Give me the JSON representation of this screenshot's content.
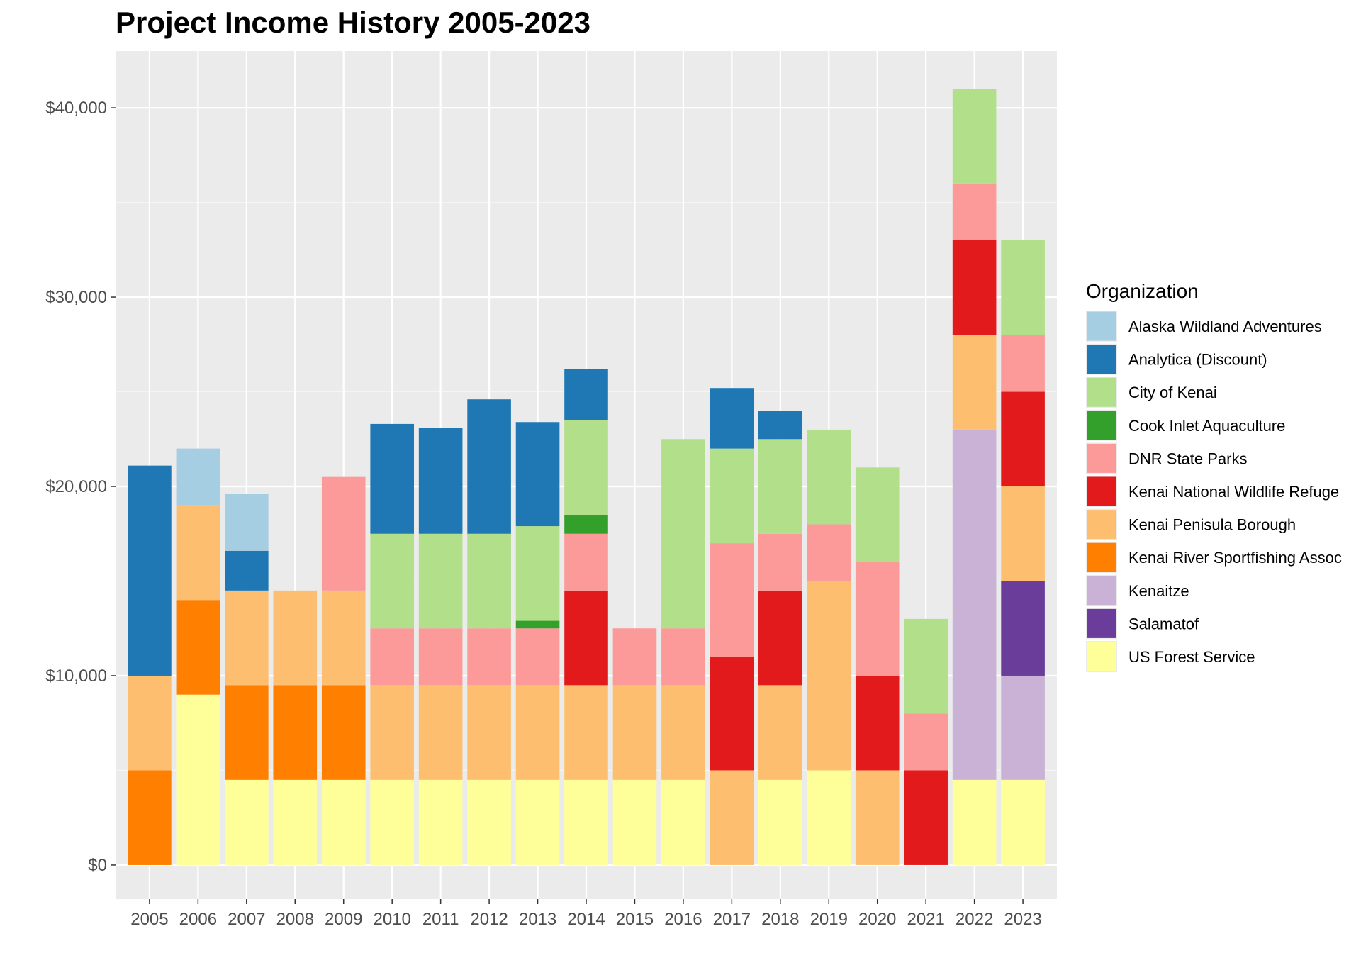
{
  "chart_data": {
    "type": "bar",
    "stacked": true,
    "title": "Project Income History 2005-2023",
    "xlabel": "",
    "ylabel": "",
    "ylim": [
      -1800,
      43000
    ],
    "yticks": [
      0,
      10000,
      20000,
      30000,
      40000
    ],
    "ytick_labels": [
      "$0",
      "$10,000",
      "$20,000",
      "$30,000",
      "$40,000"
    ],
    "grid": true,
    "legend_position": "right",
    "legend_title": "Organization",
    "categories": [
      "2005",
      "2006",
      "2007",
      "2008",
      "2009",
      "2010",
      "2011",
      "2012",
      "2013",
      "2014",
      "2015",
      "2016",
      "2017",
      "2018",
      "2019",
      "2020",
      "2021",
      "2022",
      "2023"
    ],
    "stack_order": [
      "US Forest Service",
      "Kenaitze",
      "Salamatof",
      "Kenai River Sportfishing Assoc",
      "Kenai Penisula Borough",
      "Kenai National Wildlife Refuge",
      "DNR State Parks",
      "Cook Inlet Aquaculture",
      "City of Kenai",
      "Analytica (Discount)",
      "Alaska Wildland Adventures"
    ],
    "series": [
      {
        "name": "Alaska Wildland Adventures",
        "color": "#A6CEE3",
        "values": [
          0,
          3000,
          3000,
          0,
          0,
          0,
          0,
          0,
          0,
          0,
          0,
          0,
          0,
          0,
          0,
          0,
          0,
          0,
          0
        ]
      },
      {
        "name": "Analytica (Discount)",
        "color": "#1F78B4",
        "values": [
          11100,
          0,
          2100,
          0,
          0,
          5800,
          5600,
          7100,
          5500,
          2700,
          0,
          0,
          3200,
          1500,
          0,
          0,
          0,
          0,
          0
        ]
      },
      {
        "name": "City of Kenai",
        "color": "#B2DF8A",
        "values": [
          0,
          0,
          0,
          0,
          0,
          5000,
          5000,
          5000,
          5000,
          5000,
          0,
          10000,
          5000,
          5000,
          5000,
          5000,
          5000,
          5000,
          5000
        ]
      },
      {
        "name": "Cook Inlet Aquaculture",
        "color": "#33A02C",
        "values": [
          0,
          0,
          0,
          0,
          0,
          0,
          0,
          0,
          400,
          1000,
          0,
          0,
          0,
          0,
          0,
          0,
          0,
          0,
          0
        ]
      },
      {
        "name": "DNR State Parks",
        "color": "#FB9A99",
        "values": [
          0,
          0,
          0,
          0,
          6000,
          3000,
          3000,
          3000,
          3000,
          3000,
          3000,
          3000,
          6000,
          3000,
          3000,
          6000,
          3000,
          3000,
          3000
        ]
      },
      {
        "name": "Kenai National Wildlife Refuge",
        "color": "#E31A1C",
        "values": [
          0,
          0,
          0,
          0,
          0,
          0,
          0,
          0,
          0,
          5000,
          0,
          0,
          6000,
          5000,
          0,
          5000,
          5000,
          5000,
          5000
        ]
      },
      {
        "name": "Kenai Penisula Borough",
        "color": "#FDBF6F",
        "values": [
          5000,
          5000,
          5000,
          5000,
          5000,
          5000,
          5000,
          5000,
          5000,
          5000,
          5000,
          5000,
          5000,
          5000,
          10000,
          5000,
          0,
          5000,
          5000
        ]
      },
      {
        "name": "Kenai River Sportfishing Assoc",
        "color": "#FF7F00",
        "values": [
          5000,
          5000,
          5000,
          5000,
          5000,
          0,
          0,
          0,
          0,
          0,
          0,
          0,
          0,
          0,
          0,
          0,
          0,
          0,
          0
        ]
      },
      {
        "name": "Kenaitze",
        "color": "#CAB2D6",
        "values": [
          0,
          0,
          0,
          0,
          0,
          0,
          0,
          0,
          0,
          0,
          0,
          0,
          0,
          0,
          0,
          0,
          0,
          18500,
          5500
        ]
      },
      {
        "name": "Salamatof",
        "color": "#6A3D9A",
        "values": [
          0,
          0,
          0,
          0,
          0,
          0,
          0,
          0,
          0,
          0,
          0,
          0,
          0,
          0,
          0,
          0,
          0,
          0,
          5000
        ]
      },
      {
        "name": "US Forest Service",
        "color": "#FFFF99",
        "values": [
          0,
          9000,
          4500,
          4500,
          4500,
          4500,
          4500,
          4500,
          4500,
          4500,
          4500,
          4500,
          0,
          4500,
          5000,
          0,
          0,
          4500,
          4500
        ]
      }
    ]
  },
  "colors": {
    "panel_background": "#EBEBEB",
    "grid_major": "#FFFFFF",
    "grid_minor": "#F5F5F5",
    "tick_text": "#4D4D4D"
  }
}
